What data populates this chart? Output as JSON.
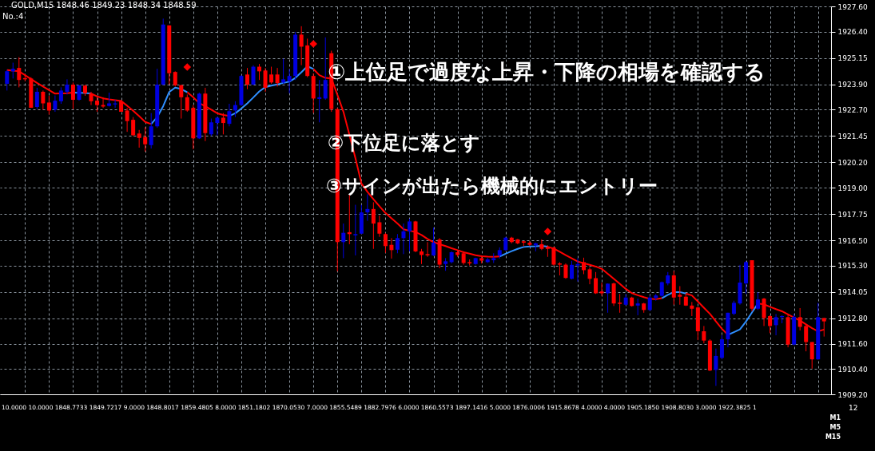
{
  "chart_data": {
    "type": "candlestick",
    "categories": [
      null,
      null,
      null,
      null,
      null,
      null,
      null,
      null,
      null,
      null,
      null,
      null,
      null,
      null,
      null,
      null,
      null,
      null,
      null,
      null,
      null,
      null,
      null,
      null,
      null,
      null,
      null,
      null,
      null,
      null,
      null,
      null,
      null,
      null,
      null,
      null,
      null,
      null,
      null,
      null,
      null,
      null,
      null,
      null,
      null,
      null,
      null,
      null,
      null,
      null,
      null,
      null,
      null,
      null,
      null,
      null,
      null,
      null,
      null,
      null,
      null,
      null,
      null,
      null,
      null,
      null,
      null,
      null,
      null,
      null,
      null,
      null,
      null,
      null,
      null,
      null,
      null,
      null,
      null,
      null,
      null,
      null,
      null,
      null,
      null,
      null,
      null,
      null,
      null,
      null,
      null,
      null,
      null,
      null,
      null,
      null,
      null,
      null,
      null,
      null,
      null,
      null,
      null,
      null,
      null,
      null,
      null,
      null,
      null,
      null,
      null,
      null,
      null,
      null,
      null,
      null,
      null,
      null,
      null,
      null,
      null,
      null,
      null,
      null,
      null,
      null,
      null,
      null,
      null,
      null,
      null,
      null,
      null,
      null,
      null,
      null,
      null
    ],
    "ohlc": [
      [
        1923.93,
        1924.59,
        1923.61,
        1924.52
      ],
      [
        1924.52,
        1924.93,
        1924.18,
        1924.64
      ],
      [
        1924.68,
        1925.19,
        1923.76,
        1924.11
      ],
      [
        1924.2,
        1924.37,
        1924.05,
        1924.14
      ],
      [
        1924.18,
        1924.24,
        1922.79,
        1922.79
      ],
      [
        1922.83,
        1923.74,
        1922.73,
        1923.55
      ],
      [
        1923.55,
        1923.61,
        1922.7,
        1923.0
      ],
      [
        1923.04,
        1923.36,
        1922.47,
        1922.66
      ],
      [
        1922.7,
        1923.38,
        1922.6,
        1923.13
      ],
      [
        1923.1,
        1923.76,
        1922.98,
        1923.61
      ],
      [
        1923.55,
        1924.14,
        1923.42,
        1923.89
      ],
      [
        1923.89,
        1923.99,
        1922.73,
        1923.17
      ],
      [
        1923.17,
        1923.86,
        1923.13,
        1923.86
      ],
      [
        1923.84,
        1923.89,
        1923.36,
        1923.48
      ],
      [
        1923.48,
        1923.55,
        1922.92,
        1923.1
      ],
      [
        1923.13,
        1923.29,
        1922.6,
        1922.92
      ],
      [
        1922.92,
        1923.29,
        1922.79,
        1922.85
      ],
      [
        1922.88,
        1923.51,
        1922.85,
        1923.0
      ],
      [
        1922.95,
        1923.17,
        1922.79,
        1923.0
      ],
      [
        1923.1,
        1923.17,
        1922.6,
        1922.6
      ],
      [
        1922.66,
        1922.79,
        1921.65,
        1922.16
      ],
      [
        1922.22,
        1922.35,
        1921.44,
        1921.49
      ],
      [
        1921.57,
        1921.74,
        1920.9,
        1921.36
      ],
      [
        1921.4,
        1921.87,
        1920.71,
        1921.06
      ],
      [
        1921.02,
        1922.54,
        1920.86,
        1921.91
      ],
      [
        1921.91,
        1924.64,
        1921.84,
        1923.89
      ],
      [
        1923.89,
        1927.02,
        1923.86,
        1926.74
      ],
      [
        1926.7,
        1926.7,
        1923.89,
        1924.43
      ],
      [
        1924.49,
        1924.52,
        1923.8,
        1923.86
      ],
      [
        1923.86,
        1923.89,
        1922.28,
        1923.29
      ],
      [
        1923.29,
        1923.42,
        1922.6,
        1922.66
      ],
      [
        1922.79,
        1922.92,
        1920.83,
        1921.34
      ],
      [
        1921.34,
        1923.51,
        1921.31,
        1923.46
      ],
      [
        1923.46,
        1923.74,
        1921.21,
        1921.59
      ],
      [
        1921.53,
        1922.28,
        1921.46,
        1922.1
      ],
      [
        1922.07,
        1922.37,
        1921.49,
        1922.32
      ],
      [
        1922.32,
        1922.54,
        1921.53,
        1922.07
      ],
      [
        1922.03,
        1922.98,
        1921.91,
        1922.63
      ],
      [
        1922.66,
        1923.1,
        1922.35,
        1922.92
      ],
      [
        1922.92,
        1924.34,
        1922.88,
        1924.3
      ],
      [
        1924.37,
        1924.68,
        1923.67,
        1923.89
      ],
      [
        1923.89,
        1924.81,
        1923.86,
        1924.74
      ],
      [
        1924.74,
        1924.87,
        1924.11,
        1924.52
      ],
      [
        1924.56,
        1924.68,
        1923.55,
        1923.74
      ],
      [
        1924.37,
        1924.74,
        1923.93,
        1923.99
      ],
      [
        1924.37,
        1924.68,
        1923.8,
        1923.96
      ],
      [
        1923.99,
        1925.12,
        1923.93,
        1924.14
      ],
      [
        1924.05,
        1924.62,
        1923.48,
        1924.3
      ],
      [
        1924.3,
        1926.39,
        1924.11,
        1926.26
      ],
      [
        1926.26,
        1926.66,
        1924.81,
        1925.69
      ],
      [
        1925.75,
        1926.07,
        1924.24,
        1924.3
      ],
      [
        1924.3,
        1924.43,
        1922.54,
        1923.23
      ],
      [
        1923.21,
        1924.11,
        1922.1,
        1923.29
      ],
      [
        1923.23,
        1926.13,
        1923.17,
        1924.11
      ],
      [
        1925.38,
        1925.5,
        1922.6,
        1922.73
      ],
      [
        1922.73,
        1922.79,
        1915.03,
        1916.42
      ],
      [
        1916.42,
        1917.3,
        1915.66,
        1916.86
      ],
      [
        1916.89,
        1918.69,
        1916.32,
        1916.8
      ],
      [
        1916.74,
        1918.19,
        1915.79,
        1916.8
      ],
      [
        1916.82,
        1918.19,
        1916.8,
        1917.83
      ],
      [
        1917.83,
        1918.69,
        1917.43,
        1917.99
      ],
      [
        1917.99,
        1918.31,
        1916.1,
        1917.3
      ],
      [
        1917.36,
        1917.68,
        1916.67,
        1916.82
      ],
      [
        1916.8,
        1916.86,
        1915.91,
        1916.23
      ],
      [
        1916.29,
        1916.61,
        1915.64,
        1916.04
      ],
      [
        1916.06,
        1916.8,
        1915.89,
        1916.61
      ],
      [
        1916.61,
        1917.3,
        1915.85,
        1916.93
      ],
      [
        1916.93,
        1917.53,
        1915.98,
        1917.4
      ],
      [
        1917.4,
        1917.43,
        1915.94,
        1915.98
      ],
      [
        1915.98,
        1916.1,
        1915.38,
        1915.81
      ],
      [
        1915.85,
        1916.42,
        1915.72,
        1915.79
      ],
      [
        1915.79,
        1917.11,
        1915.76,
        1916.39
      ],
      [
        1916.54,
        1916.61,
        1915.18,
        1915.35
      ],
      [
        1915.38,
        1915.66,
        1915.06,
        1915.51
      ],
      [
        1915.47,
        1915.98,
        1915.41,
        1915.94
      ],
      [
        1915.94,
        1916.04,
        1915.72,
        1915.81
      ],
      [
        1915.89,
        1915.98,
        1915.35,
        1915.43
      ],
      [
        1915.47,
        1915.6,
        1915.31,
        1915.41
      ],
      [
        1915.38,
        1915.68,
        1915.35,
        1915.66
      ],
      [
        1915.66,
        1915.79,
        1915.41,
        1915.54
      ],
      [
        1915.47,
        1915.68,
        1915.43,
        1915.6
      ],
      [
        1915.56,
        1915.89,
        1915.43,
        1915.66
      ],
      [
        1915.79,
        1916.17,
        1915.64,
        1916.04
      ],
      [
        1916.04,
        1916.67,
        1916.01,
        1916.63
      ],
      [
        1916.63,
        1916.67,
        1916.36,
        1916.42
      ],
      [
        1916.55,
        1916.57,
        1916.32,
        1916.36
      ],
      [
        1916.46,
        1916.48,
        1916.23,
        1916.39
      ],
      [
        1916.39,
        1916.48,
        1916.23,
        1916.29
      ],
      [
        1916.27,
        1916.39,
        1915.98,
        1916.36
      ],
      [
        1916.32,
        1916.55,
        1916.04,
        1916.1
      ],
      [
        1916.19,
        1916.27,
        1915.72,
        1916.1
      ],
      [
        1916.17,
        1916.19,
        1915.31,
        1915.35
      ],
      [
        1915.41,
        1915.47,
        1914.84,
        1915.35
      ],
      [
        1915.35,
        1915.41,
        1914.68,
        1914.72
      ],
      [
        1914.68,
        1915.53,
        1914.65,
        1915.34
      ],
      [
        1915.31,
        1915.66,
        1914.55,
        1915.38
      ],
      [
        1915.47,
        1915.68,
        1914.9,
        1915.09
      ],
      [
        1915.13,
        1915.22,
        1914.42,
        1914.68
      ],
      [
        1914.71,
        1915.0,
        1913.96,
        1913.99
      ],
      [
        1914.08,
        1914.5,
        1913.87,
        1913.99
      ],
      [
        1913.99,
        1914.46,
        1913.07,
        1914.45
      ],
      [
        1914.46,
        1914.5,
        1913.39,
        1913.51
      ],
      [
        1913.55,
        1913.96,
        1913.07,
        1913.49
      ],
      [
        1913.45,
        1913.96,
        1913.41,
        1913.79
      ],
      [
        1913.79,
        1913.83,
        1913.36,
        1913.39
      ],
      [
        1913.41,
        1913.74,
        1912.95,
        1913.51
      ],
      [
        1913.51,
        1913.54,
        1913.07,
        1913.2
      ],
      [
        1913.2,
        1913.89,
        1913.16,
        1913.79
      ],
      [
        1913.77,
        1913.96,
        1913.64,
        1913.89
      ],
      [
        1913.87,
        1914.55,
        1913.83,
        1914.52
      ],
      [
        1914.46,
        1915.0,
        1914.37,
        1914.84
      ],
      [
        1914.84,
        1915.05,
        1913.45,
        1913.79
      ],
      [
        1913.92,
        1914.33,
        1913.45,
        1913.83
      ],
      [
        1913.83,
        1913.96,
        1913.39,
        1913.41
      ],
      [
        1913.41,
        1913.58,
        1912.91,
        1913.26
      ],
      [
        1913.32,
        1913.36,
        1911.77,
        1912.19
      ],
      [
        1912.19,
        1912.44,
        1911.62,
        1911.75
      ],
      [
        1911.75,
        1911.81,
        1910.3,
        1910.33
      ],
      [
        1910.36,
        1911.37,
        1909.6,
        1911.02
      ],
      [
        1910.93,
        1912.0,
        1910.86,
        1911.81
      ],
      [
        1911.81,
        1913.07,
        1911.43,
        1913.07
      ],
      [
        1913.02,
        1913.64,
        1912.95,
        1913.54
      ],
      [
        1913.51,
        1915.34,
        1913.45,
        1914.5
      ],
      [
        1914.46,
        1915.53,
        1913.96,
        1915.47
      ],
      [
        1915.56,
        1915.56,
        1913.14,
        1913.26
      ],
      [
        1913.26,
        1914.04,
        1913.2,
        1913.7
      ],
      [
        1913.74,
        1913.77,
        1912.44,
        1912.82
      ],
      [
        1912.91,
        1912.95,
        1912.1,
        1912.44
      ],
      [
        1912.48,
        1913.01,
        1912.0,
        1912.86
      ],
      [
        1912.86,
        1912.95,
        1912.57,
        1912.91
      ],
      [
        1912.86,
        1913.01,
        1911.43,
        1911.56
      ],
      [
        1911.56,
        1913.01,
        1911.52,
        1912.88
      ],
      [
        1912.86,
        1913.29,
        1912.23,
        1912.4
      ],
      [
        1912.44,
        1912.5,
        1911.24,
        1911.68
      ],
      [
        1911.68,
        1911.68,
        1910.42,
        1910.86
      ],
      [
        1910.86,
        1913.54,
        1910.84,
        1912.86
      ],
      [
        1912.82,
        1912.82,
        1911.94,
        1912.66
      ]
    ],
    "colors": [
      "#0000e0",
      "#0000e0",
      "#ff0000",
      "#ff0000",
      "#ff0000",
      "#0000e0",
      "#ff0000",
      "#ff0000",
      "#0000e0",
      "#0000e0",
      "#0000e0",
      "#ff0000",
      "#0000e0",
      "#ff0000",
      "#ff0000",
      "#ff0000",
      "#ff0000",
      "#0000e0",
      "#0000e0",
      "#ff0000",
      "#ff0000",
      "#ff0000",
      "#ff0000",
      "#ff0000",
      "#0000e0",
      "#0000e0",
      "#0000e0",
      "#ff0000",
      "#ff0000",
      "#ff0000",
      "#ff0000",
      "#ff0000",
      "#0000e0",
      "#ff0000",
      "#0000e0",
      "#0000e0",
      "#ff0000",
      "#0000e0",
      "#0000e0",
      "#0000e0",
      "#ff0000",
      "#0000e0",
      "#ff0000",
      "#ff0000",
      "#ff0000",
      "#ff0000",
      "#0000e0",
      "#0000e0",
      "#0000e0",
      "#ff0000",
      "#ff0000",
      "#ff0000",
      "#0000e0",
      "#0000e0",
      "#ff0000",
      "#ff0000",
      "#0000e0",
      "#ff0000",
      "#0000e0",
      "#0000e0",
      "#0000e0",
      "#ff0000",
      "#ff0000",
      "#ff0000",
      "#ff0000",
      "#0000e0",
      "#0000e0",
      "#0000e0",
      "#ff0000",
      "#ff0000",
      "#ff0000",
      "#0000e0",
      "#ff0000",
      "#0000e0",
      "#0000e0",
      "#ff0000",
      "#ff0000",
      "#ff0000",
      "#0000e0",
      "#ff0000",
      "#0000e0",
      "#0000e0",
      "#0000e0",
      "#0000e0",
      "#ff0000",
      "#ff0000",
      "#ff0000",
      "#ff0000",
      "#0000e0",
      "#ff0000",
      "#ff0000",
      "#ff0000",
      "#ff0000",
      "#ff0000",
      "#0000e0",
      "#0000e0",
      "#ff0000",
      "#ff0000",
      "#ff0000",
      "#ff0000",
      "#0000e0",
      "#ff0000",
      "#ff0000",
      "#0000e0",
      "#ff0000",
      "#0000e0",
      "#ff0000",
      "#0000e0",
      "#0000e0",
      "#0000e0",
      "#0000e0",
      "#ff0000",
      "#ff0000",
      "#ff0000",
      "#ff0000",
      "#ff0000",
      "#ff0000",
      "#ff0000",
      "#0000e0",
      "#0000e0",
      "#0000e0",
      "#0000e0",
      "#0000e0",
      "#0000e0",
      "#ff0000",
      "#0000e0",
      "#ff0000",
      "#ff0000",
      "#0000e0",
      "#0000e0",
      "#ff0000",
      "#0000e0",
      "#ff0000",
      "#ff0000",
      "#ff0000",
      "#0000e0",
      "#ff0000"
    ],
    "series": [
      {
        "type": "line",
        "color": "#ff0000",
        "values": [
          1924.58,
          1924.55,
          1924.52,
          1924.34,
          1924.15,
          1923.97,
          1923.8,
          1923.63,
          1923.46,
          1923.47,
          1923.48,
          1923.51,
          null,
          null,
          1923.46,
          1923.33,
          1923.24,
          1923.19,
          1923.15,
          1923.11,
          1922.89,
          1922.65,
          1922.39,
          1922.12,
          1922.02,
          null,
          null,
          null,
          null,
          null,
          1923.53,
          1923.29,
          1923.01,
          1922.86,
          1922.7,
          1922.53,
          1922.45,
          1922.4,
          null,
          null,
          null,
          null,
          null,
          null,
          null,
          null,
          null,
          null,
          null,
          null,
          null,
          1924.63,
          1924.34,
          1924.21,
          1924.18,
          1923.4,
          1922.6,
          1921.5,
          1920.4,
          1919.2,
          1918.8,
          1918.45,
          1918.12,
          1917.8,
          1917.55,
          1917.3,
          1917.03,
          1916.96,
          1916.9,
          1916.76,
          1916.57,
          1916.42,
          1916.32,
          1916.23,
          1916.13,
          1916.04,
          1915.94,
          1915.87,
          1915.8,
          1915.75,
          1915.73,
          1915.72,
          1915.74,
          null,
          null,
          null,
          null,
          null,
          null,
          null,
          1916.2,
          1916.11,
          1915.96,
          1915.8,
          1915.65,
          1915.5,
          1915.42,
          1915.34,
          1915.26,
          1915.15,
          1914.92,
          1914.68,
          1914.44,
          1914.2,
          1914.0,
          1913.9,
          1913.81,
          1913.73,
          1913.71,
          1913.76,
          null,
          null,
          null,
          1913.98,
          1913.89,
          1913.6,
          1913.31,
          1913.02,
          1912.66,
          1912.31,
          1912.02,
          null,
          null,
          null,
          null,
          1913.51,
          1913.47,
          1913.35,
          1913.24,
          1913.14,
          1912.99,
          1912.84,
          1912.7,
          1912.52,
          1912.34,
          1912.19,
          1912.27
        ]
      },
      {
        "type": "line",
        "color": "#2f8fff",
        "values": [
          null,
          null,
          null,
          null,
          null,
          null,
          null,
          null,
          null,
          null,
          null,
          1923.51,
          1923.5,
          1923.49,
          1923.46,
          null,
          null,
          null,
          null,
          null,
          null,
          null,
          null,
          null,
          1922.02,
          1922.35,
          1922.87,
          1923.54,
          1923.75,
          1923.68,
          1923.53,
          null,
          null,
          null,
          null,
          null,
          null,
          1922.4,
          1922.53,
          1922.75,
          1923.0,
          1923.28,
          1923.57,
          1923.77,
          1923.84,
          1923.9,
          1923.97,
          1924.03,
          1924.21,
          1924.48,
          1924.76,
          1924.63,
          null,
          null,
          null,
          null,
          null,
          null,
          null,
          null,
          null,
          null,
          null,
          null,
          null,
          null,
          null,
          null,
          null,
          null,
          null,
          null,
          null,
          null,
          null,
          null,
          null,
          null,
          null,
          null,
          null,
          null,
          1915.74,
          1915.87,
          1915.99,
          1916.1,
          1916.19,
          1916.21,
          1916.22,
          1916.24,
          1916.2,
          null,
          null,
          null,
          null,
          null,
          null,
          null,
          null,
          null,
          null,
          null,
          null,
          null,
          null,
          null,
          null,
          null,
          null,
          1913.76,
          1913.92,
          1914.05,
          1914.05,
          1913.98,
          null,
          null,
          null,
          null,
          null,
          null,
          1912.02,
          1912.15,
          1912.28,
          1912.65,
          1913.08,
          1913.51,
          null,
          null,
          null,
          null,
          null,
          null,
          null,
          null,
          null,
          null,
          null
        ]
      },
      {
        "type": "scatter",
        "color": "#ff0000",
        "marker": "diamond",
        "values": [
          null,
          null,
          null,
          null,
          null,
          null,
          null,
          null,
          null,
          null,
          null,
          null,
          null,
          null,
          null,
          null,
          null,
          null,
          null,
          null,
          null,
          null,
          null,
          null,
          null,
          null,
          null,
          null,
          null,
          null,
          1924.72,
          null,
          null,
          null,
          null,
          null,
          null,
          null,
          null,
          null,
          null,
          null,
          null,
          null,
          null,
          null,
          null,
          null,
          null,
          null,
          null,
          1925.82,
          null,
          null,
          null,
          null,
          null,
          null,
          null,
          null,
          null,
          null,
          null,
          null,
          null,
          null,
          null,
          null,
          null,
          null,
          null,
          null,
          null,
          null,
          null,
          null,
          null,
          null,
          null,
          null,
          null,
          null,
          null,
          null,
          null,
          null,
          null,
          null,
          null,
          null,
          1916.92,
          null,
          null,
          null,
          null,
          null,
          null,
          null,
          null,
          null,
          null,
          null,
          null,
          null,
          null,
          null,
          null,
          null,
          null,
          null,
          null,
          null,
          null,
          null,
          null,
          null,
          null,
          null,
          null,
          null,
          null,
          null,
          null,
          null,
          null,
          null,
          null,
          null,
          null,
          null,
          null,
          null,
          null,
          null,
          null,
          null,
          null
        ]
      }
    ],
    "ylim": [
      1909.2,
      1927.6
    ],
    "yticks": [
      {
        "value": 1909.2,
        "label": "1909.20"
      },
      {
        "value": 1910.4,
        "label": "1910.40"
      },
      {
        "value": 1911.6,
        "label": "1911.60"
      },
      {
        "value": 1912.8,
        "label": "1912.80"
      },
      {
        "value": 1914.05,
        "label": "1914.05"
      },
      {
        "value": 1915.3,
        "label": "1915.30"
      },
      {
        "value": 1916.5,
        "label": "1916.50"
      },
      {
        "value": 1917.75,
        "label": "1917.75"
      },
      {
        "value": 1919.0,
        "label": "1919.00"
      },
      {
        "value": 1920.2,
        "label": "1920.20"
      },
      {
        "value": 1921.45,
        "label": "1921.45"
      },
      {
        "value": 1922.7,
        "label": "1922.70"
      },
      {
        "value": 1923.9,
        "label": "1923.90"
      },
      {
        "value": 1925.15,
        "label": "1925.15"
      },
      {
        "value": 1926.4,
        "label": "1926.40"
      },
      {
        "value": 1927.6,
        "label": "1927.60"
      }
    ],
    "tick_labels": "y",
    "grid": true,
    "annotations": [
      "GOLD,M15 1848.46 1849.23 1848.34 1848.59",
      "No.:4",
      "①上位足で過度な上昇・下降の相場を確認する",
      "②下位足に落とす",
      "③サインが出たら機械的にエントリー",
      "10.0000 10.0000 1848.7733 1849.7217 9.0000 1848.8017 1859.4805 8.0000 1851.1802 1870.0530 7.0000 1855.5489 1882.7976 6.0000 1860.5573 1897.1416 5.0000 1876.0006 1915.8678 4.0000 4.0000 1905.1850 1908.8030 3.0000 1922.3825 1",
      "12",
      "M1",
      "M5",
      "M15"
    ]
  }
}
